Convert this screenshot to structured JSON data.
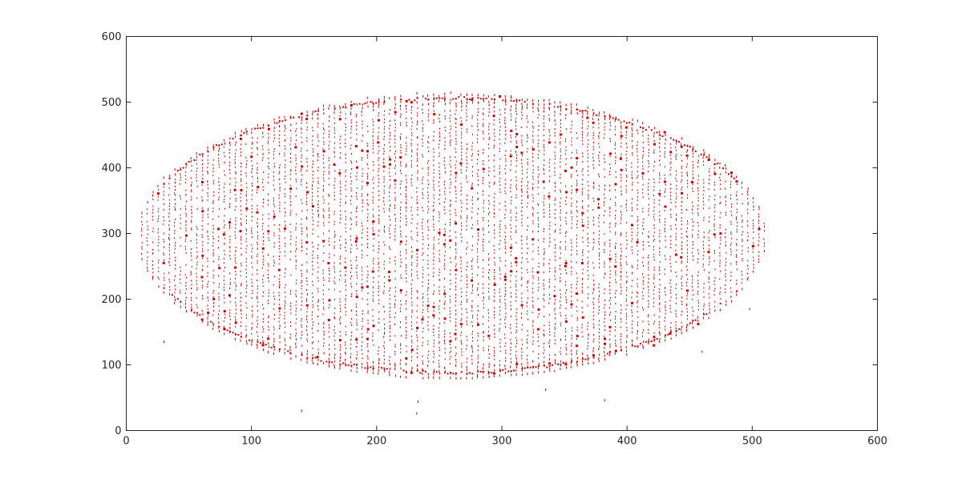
{
  "chart_data": {
    "type": "scatter",
    "title": "",
    "xlabel": "",
    "ylabel": "",
    "xlim": [
      0,
      600
    ],
    "ylim": [
      0,
      600
    ],
    "xticks": [
      0,
      100,
      200,
      300,
      400,
      500,
      600
    ],
    "yticks": [
      0,
      100,
      200,
      300,
      400,
      500,
      600
    ],
    "xtick_labels": [
      "0",
      "100",
      "200",
      "300",
      "400",
      "500",
      "600"
    ],
    "ytick_labels": [
      "0",
      "100",
      "200",
      "300",
      "400",
      "500",
      "600"
    ],
    "grid": false,
    "legend": false,
    "marker_color": "#cc0000",
    "marker": "point",
    "series": [
      {
        "region_shape": "ellipse",
        "center": [
          260,
          297
        ],
        "x_range": [
          8,
          510
        ],
        "y_range": [
          78,
          512
        ],
        "x_column_spacing": 4.4,
        "y_row_spacing": 9,
        "outliers": [
          [
            140,
            30
          ],
          [
            232,
            26
          ],
          [
            233,
            44
          ],
          [
            335,
            62
          ],
          [
            382,
            46
          ],
          [
            460,
            120
          ],
          [
            30,
            135
          ],
          [
            498,
            185
          ]
        ]
      }
    ]
  }
}
